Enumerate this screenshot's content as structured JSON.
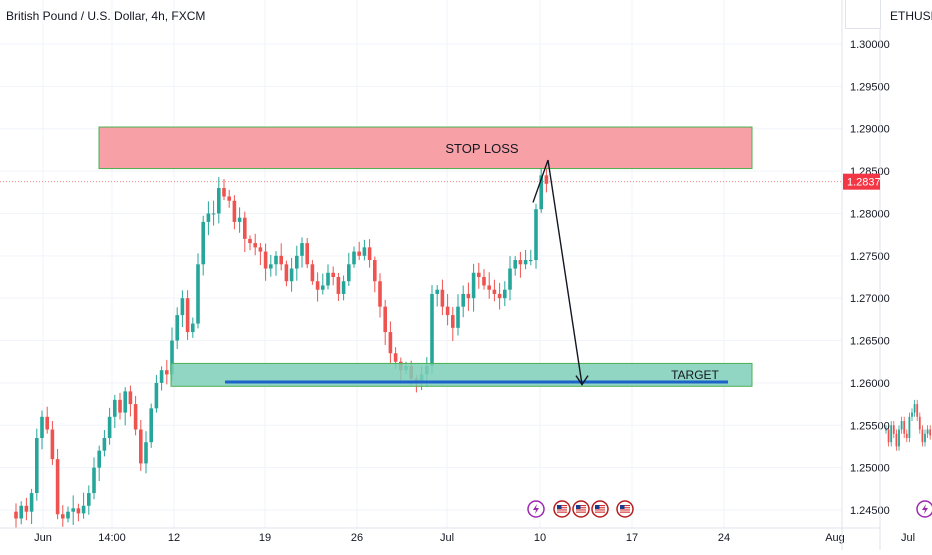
{
  "header": {
    "title": "British Pound / U.S. Dollar, 4h, FXCM",
    "side_symbol": "ETHUSDT,"
  },
  "colors": {
    "up": "#26a69a",
    "down": "#ef5350",
    "stop_fill": "#f7a1a6",
    "stop_border": "#4caf50",
    "target_fill": "#7ccfb8",
    "target_border": "#4caf50",
    "target_line": "#1e63c9",
    "price_badge": "#f23645"
  },
  "chart_data": {
    "type": "candlestick",
    "title": "British Pound / U.S. Dollar, 4h, FXCM",
    "ylim": [
      1.2438,
      1.3005
    ],
    "grid": true,
    "y_ticks": [
      "1.30000",
      "1.29500",
      "1.29000",
      "1.28500",
      "1.28000",
      "1.27500",
      "1.27000",
      "1.26500",
      "1.26000",
      "1.25500",
      "1.25000",
      "1.24500"
    ],
    "y_tick_values": [
      1.3,
      1.295,
      1.29,
      1.285,
      1.28,
      1.275,
      1.27,
      1.265,
      1.26,
      1.255,
      1.25,
      1.245
    ],
    "x_ticks": [
      "Jun",
      "14:00",
      "12",
      "19",
      "26",
      "Jul",
      "10",
      "17",
      "24",
      "Aug",
      "Jul"
    ],
    "last_price_label": "1.28375",
    "last_price": 1.28375,
    "zones": [
      {
        "name": "stop",
        "label": "STOP LOSS",
        "from": 1.2853,
        "to": 1.2902
      },
      {
        "name": "target",
        "label": "TARGET",
        "from": 1.2596,
        "to": 1.2623
      }
    ],
    "target_level": 1.2601,
    "projection": [
      1.2813,
      1.2863,
      1.2598
    ],
    "closes": [
      1.244,
      1.2455,
      1.2448,
      1.247,
      1.2535,
      1.256,
      1.2545,
      1.251,
      1.2445,
      1.244,
      1.2448,
      1.2452,
      1.2446,
      1.2455,
      1.247,
      1.25,
      1.252,
      1.2535,
      1.256,
      1.258,
      1.2565,
      1.259,
      1.2575,
      1.2545,
      1.2505,
      1.253,
      1.257,
      1.26,
      1.2615,
      1.261,
      1.265,
      1.268,
      1.27,
      1.266,
      1.267,
      1.274,
      1.279,
      1.28,
      1.28,
      1.283,
      1.282,
      1.2815,
      1.279,
      1.2795,
      1.277,
      1.2765,
      1.276,
      1.2755,
      1.2735,
      1.274,
      1.275,
      1.274,
      1.272,
      1.2735,
      1.275,
      1.2765,
      1.274,
      1.272,
      1.271,
      1.2715,
      1.273,
      1.2725,
      1.2705,
      1.272,
      1.274,
      1.2755,
      1.275,
      1.276,
      1.2745,
      1.272,
      1.269,
      1.266,
      1.2635,
      1.2625,
      1.2615,
      1.262,
      1.2605,
      1.26,
      1.261,
      1.262,
      1.2705,
      1.271,
      1.269,
      1.268,
      1.2665,
      1.269,
      1.2705,
      1.27,
      1.273,
      1.2725,
      1.2715,
      1.271,
      1.2705,
      1.27,
      1.271,
      1.2735,
      1.2745,
      1.274,
      1.2745,
      1.2745,
      1.2805,
      1.2845,
      1.2835
    ]
  },
  "inset": {
    "x_tick": "Jul",
    "closes": [
      1.2545,
      1.253,
      1.255,
      1.254,
      1.2525,
      1.2545,
      1.2555,
      1.254,
      1.2535,
      1.256,
      1.2565,
      1.2575,
      1.256,
      1.2545,
      1.253,
      1.254,
      1.2545,
      1.2538
    ]
  },
  "event_icons": [
    "lightning-icon",
    "us-flag-icon",
    "us-flag-icon",
    "us-flag-icon",
    "us-flag-icon"
  ],
  "inset_event_icon": "lightning-icon"
}
